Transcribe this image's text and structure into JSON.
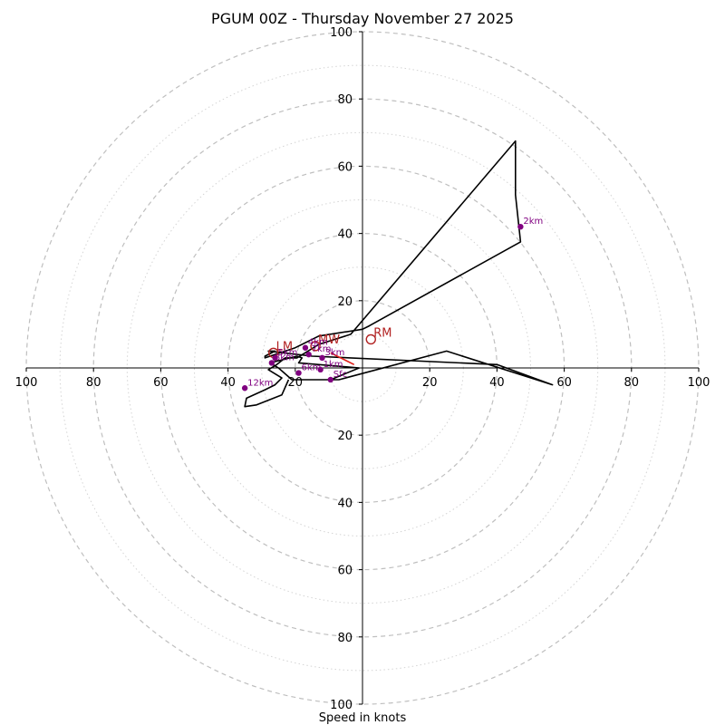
{
  "chart_data": {
    "type": "hodograph",
    "title": "PGUM 00Z - Thursday November 27 2025",
    "xlabel": "Speed in knots",
    "max_speed": 100,
    "rings_major": [
      20,
      40,
      60,
      80,
      100
    ],
    "rings_minor": [
      10,
      30,
      50,
      70,
      90
    ],
    "x_ticks": [
      {
        "label": "100",
        "value": -100
      },
      {
        "label": "80",
        "value": -80
      },
      {
        "label": "60",
        "value": -60
      },
      {
        "label": "40",
        "value": -40
      },
      {
        "label": "20",
        "value": -20
      },
      {
        "label": "20",
        "value": 20
      },
      {
        "label": "40",
        "value": 40
      },
      {
        "label": "60",
        "value": 60
      },
      {
        "label": "80",
        "value": 80
      },
      {
        "label": "100",
        "value": 100
      }
    ],
    "y_ticks": [
      {
        "label": "100",
        "value": 100
      },
      {
        "label": "80",
        "value": 80
      },
      {
        "label": "60",
        "value": 60
      },
      {
        "label": "40",
        "value": 40
      },
      {
        "label": "20",
        "value": 20
      },
      {
        "label": "20",
        "value": -20
      },
      {
        "label": "40",
        "value": -40
      },
      {
        "label": "60",
        "value": -60
      },
      {
        "label": "80",
        "value": -80
      },
      {
        "label": "100",
        "value": -100
      }
    ],
    "hodograph": {
      "u": [
        -9.5,
        -1,
        -19,
        -18,
        -19.5,
        -27.5,
        -25,
        -21,
        -13,
        -7,
        25,
        56.5,
        40,
        -15,
        -28,
        -26,
        -29,
        -29,
        -20,
        -13,
        0,
        2,
        47,
        45.5,
        45.5,
        -3.5,
        -13,
        -19.5,
        -23,
        -25.5,
        -28,
        -24,
        -26,
        -29,
        -34.5,
        -35,
        -31.5,
        -24,
        -22
      ],
      "v": [
        -3.5,
        0,
        1.5,
        3,
        3.5,
        1.5,
        0,
        -3.5,
        -3.5,
        -3.5,
        5,
        -5,
        1,
        3.5,
        5,
        5,
        3.5,
        3,
        6,
        9.5,
        11.5,
        12.5,
        37.5,
        51.5,
        67.5,
        10,
        7,
        3,
        3,
        1,
        -0.5,
        -3,
        -5,
        -6.5,
        -9,
        -11.5,
        -11,
        -8,
        -3.5
      ]
    },
    "height_markers": [
      {
        "label": "Sfc",
        "u": -9.5,
        "v": -3.5
      },
      {
        "label": "1km",
        "u": -12.5,
        "v": -0.5
      },
      {
        "label": "2km",
        "u": 47,
        "v": 42
      },
      {
        "label": "3km",
        "u": -12,
        "v": 3
      },
      {
        "label": "4km",
        "u": -17,
        "v": 6
      },
      {
        "label": "5km",
        "u": -26,
        "v": 3
      },
      {
        "label": "6km",
        "u": -19,
        "v": -1.5
      },
      {
        "label": "7km",
        "u": -16,
        "v": 4
      },
      {
        "label": "8km",
        "u": -27,
        "v": 1.5
      },
      {
        "label": "12km",
        "u": -35,
        "v": -6
      }
    ],
    "storm_motion": [
      {
        "label": "RM",
        "u": 2.5,
        "v": 8.5
      },
      {
        "label": "LM",
        "u": -26.5,
        "v": 4.5
      },
      {
        "label": "MW",
        "u": -14,
        "v": 6.5
      }
    ],
    "shear_vector": {
      "u1": -9.5,
      "v1": 4.5,
      "u2": -2.5,
      "v2": 1
    }
  }
}
